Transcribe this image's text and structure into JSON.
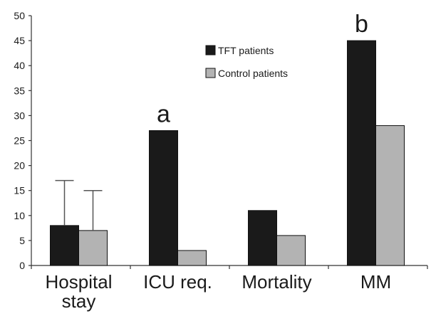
{
  "chart_data": {
    "type": "bar",
    "categories": [
      "Hospital\nstay",
      "ICU req.",
      "Mortality",
      "MM"
    ],
    "series": [
      {
        "name": "TFT patients",
        "values": [
          8,
          27,
          11,
          45
        ],
        "color": "#1a1a1a"
      },
      {
        "name": "Control patients",
        "values": [
          7,
          3,
          6,
          28
        ],
        "color": "#b3b3b3"
      }
    ],
    "error_bars": {
      "TFT patients": [
        9,
        null,
        null,
        null
      ],
      "Control patients": [
        8,
        null,
        null,
        null
      ]
    },
    "annotations": [
      {
        "category": "ICU req.",
        "text": "a"
      },
      {
        "category": "MM",
        "text": "b"
      }
    ],
    "ylim": [
      0,
      50
    ],
    "yticks": [
      0,
      5,
      10,
      15,
      20,
      25,
      30,
      35,
      40,
      45,
      50
    ],
    "grid": false,
    "legend_position": "top-right",
    "title": "",
    "xlabel": "",
    "ylabel": ""
  }
}
